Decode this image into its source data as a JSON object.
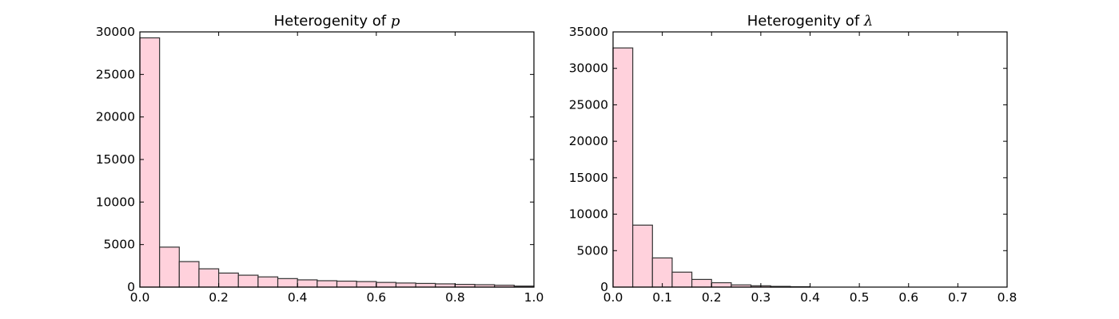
{
  "chart_data": [
    {
      "type": "bar",
      "title": "Heterogenity of ",
      "title_symbol": "p",
      "xlabel": "",
      "ylabel": "",
      "xlim": [
        0.0,
        1.0
      ],
      "ylim": [
        0,
        30000
      ],
      "bin_edges": [
        0.0,
        0.05,
        0.1,
        0.15,
        0.2,
        0.25,
        0.3,
        0.35,
        0.4,
        0.45,
        0.5,
        0.55,
        0.6,
        0.65,
        0.7,
        0.75,
        0.8,
        0.85,
        0.9,
        0.95,
        1.0
      ],
      "values": [
        29300,
        4700,
        3000,
        2150,
        1650,
        1400,
        1200,
        1000,
        850,
        750,
        700,
        650,
        550,
        480,
        430,
        380,
        320,
        280,
        220,
        120
      ],
      "xticks": [
        0.0,
        0.2,
        0.4,
        0.6,
        0.8,
        1.0
      ],
      "xtick_labels": [
        "0.0",
        "0.2",
        "0.4",
        "0.6",
        "0.8",
        "1.0"
      ],
      "yticks": [
        0,
        5000,
        10000,
        15000,
        20000,
        25000,
        30000
      ],
      "ytick_labels": [
        "0",
        "5000",
        "10000",
        "15000",
        "20000",
        "25000",
        "30000"
      ],
      "grid": false,
      "bar_color": "#ffd1dc",
      "edge_color": "#333333"
    },
    {
      "type": "bar",
      "title": "Heterogenity of ",
      "title_symbol": "λ",
      "xlabel": "",
      "ylabel": "",
      "xlim": [
        0.0,
        0.8
      ],
      "ylim": [
        0,
        35000
      ],
      "bin_edges": [
        0.0,
        0.04,
        0.08,
        0.12,
        0.16,
        0.2,
        0.24,
        0.28,
        0.32,
        0.36,
        0.4
      ],
      "values": [
        32800,
        8500,
        4000,
        2050,
        1050,
        600,
        300,
        180,
        100,
        50
      ],
      "xticks": [
        0.0,
        0.1,
        0.2,
        0.3,
        0.4,
        0.5,
        0.6,
        0.7,
        0.8
      ],
      "xtick_labels": [
        "0.0",
        "0.1",
        "0.2",
        "0.3",
        "0.4",
        "0.5",
        "0.6",
        "0.7",
        "0.8"
      ],
      "yticks": [
        0,
        5000,
        10000,
        15000,
        20000,
        25000,
        30000,
        35000
      ],
      "ytick_labels": [
        "0",
        "5000",
        "10000",
        "15000",
        "20000",
        "25000",
        "30000",
        "35000"
      ],
      "grid": false,
      "bar_color": "#ffd1dc",
      "edge_color": "#333333"
    }
  ]
}
